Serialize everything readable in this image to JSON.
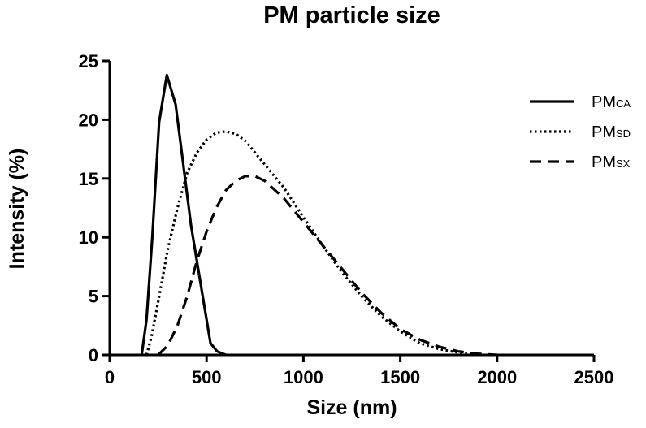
{
  "chart_data": {
    "type": "line",
    "title": "PM particle size",
    "xlabel": "Size (nm)",
    "ylabel": "Intensity (%)",
    "xlim": [
      0,
      2500
    ],
    "ylim": [
      0,
      25
    ],
    "x_ticks": [
      0,
      500,
      1000,
      1500,
      2000,
      2500
    ],
    "y_ticks": [
      0,
      5,
      10,
      15,
      20,
      25
    ],
    "grid": false,
    "legend_position": "top-right",
    "series": [
      {
        "name": "PMCA",
        "label_main": "PM",
        "label_sub": "CA",
        "style": "solid",
        "points": [
          [
            165,
            0
          ],
          [
            190,
            3
          ],
          [
            220,
            10
          ],
          [
            255,
            19.8
          ],
          [
            295,
            23.8
          ],
          [
            340,
            21.3
          ],
          [
            420,
            11
          ],
          [
            480,
            5
          ],
          [
            520,
            1
          ],
          [
            555,
            0.3
          ],
          [
            600,
            0
          ]
        ]
      },
      {
        "name": "PMSD",
        "label_main": "PM",
        "label_sub": "SD",
        "style": "dotted",
        "points": [
          [
            190,
            0
          ],
          [
            215,
            1.5
          ],
          [
            250,
            4.5
          ],
          [
            300,
            9
          ],
          [
            350,
            12.5
          ],
          [
            400,
            15.5
          ],
          [
            450,
            17.2
          ],
          [
            500,
            18.3
          ],
          [
            550,
            18.9
          ],
          [
            600,
            19
          ],
          [
            650,
            18.8
          ],
          [
            700,
            18.2
          ],
          [
            800,
            16.2
          ],
          [
            900,
            14.2
          ],
          [
            1000,
            11.7
          ],
          [
            1100,
            9.3
          ],
          [
            1200,
            7
          ],
          [
            1300,
            5
          ],
          [
            1400,
            3.3
          ],
          [
            1500,
            2
          ],
          [
            1600,
            1
          ],
          [
            1700,
            0.5
          ],
          [
            1800,
            0.2
          ],
          [
            1900,
            0
          ]
        ]
      },
      {
        "name": "PMSX",
        "label_main": "PM",
        "label_sub": "SX",
        "style": "dashed",
        "points": [
          [
            250,
            0
          ],
          [
            300,
            0.8
          ],
          [
            350,
            2.5
          ],
          [
            400,
            5
          ],
          [
            450,
            8
          ],
          [
            500,
            10.5
          ],
          [
            550,
            12.5
          ],
          [
            600,
            14
          ],
          [
            650,
            14.8
          ],
          [
            700,
            15.2
          ],
          [
            750,
            15.2
          ],
          [
            800,
            14.8
          ],
          [
            900,
            13.3
          ],
          [
            1000,
            11.3
          ],
          [
            1100,
            9.3
          ],
          [
            1200,
            7.3
          ],
          [
            1300,
            5.3
          ],
          [
            1400,
            3.6
          ],
          [
            1500,
            2.2
          ],
          [
            1600,
            1.3
          ],
          [
            1700,
            0.7
          ],
          [
            1800,
            0.3
          ],
          [
            1900,
            0.1
          ],
          [
            2000,
            0
          ]
        ]
      }
    ]
  }
}
